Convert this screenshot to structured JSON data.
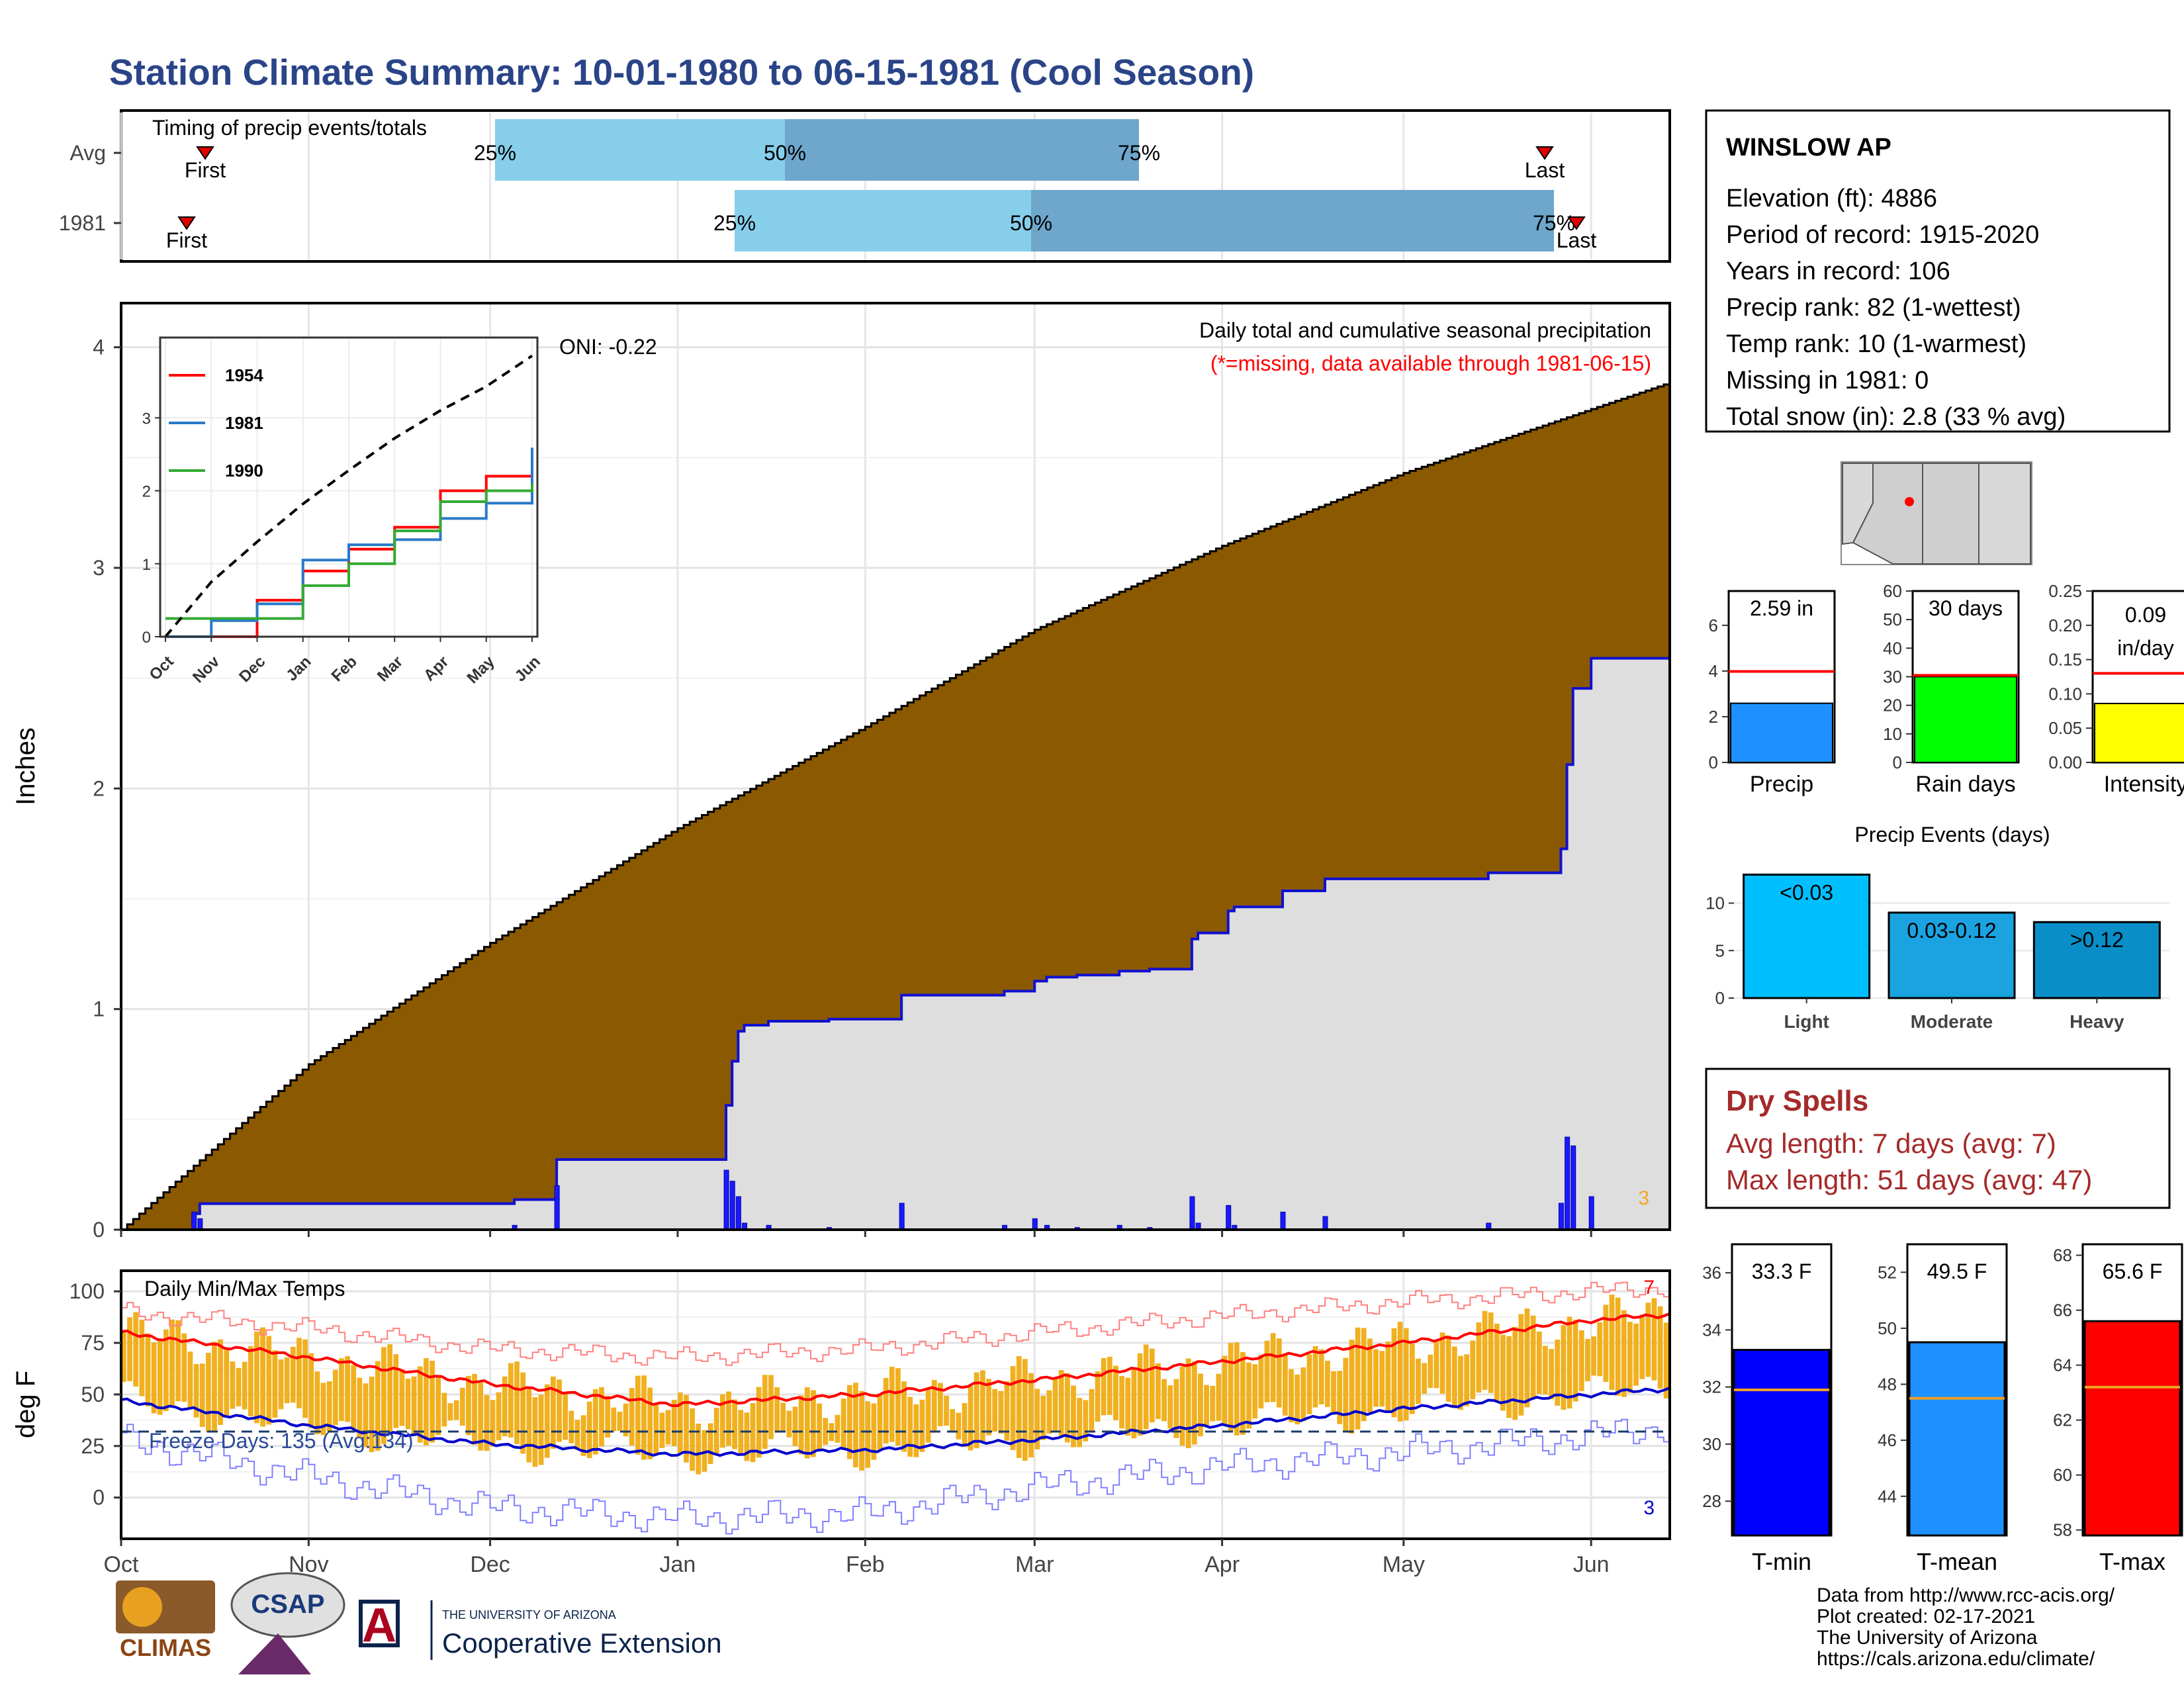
{
  "title": "Station Climate Summary: 10-01-1980 to 06-15-1981 (Cool Season)",
  "colors": {
    "title": "#2a4488",
    "avg_precip_fill": "#8b5a00",
    "season_precip_fill": "#dedede",
    "season_line": "#1010d0",
    "daily_bar": "#1a1aff",
    "timing_light": "#87ceeb",
    "timing_dark": "#6ea6cc",
    "temp_bar": "#f0b020",
    "tmax_line": "#ff0000",
    "tmin_line": "#0000cc",
    "dry_spell": "#a52a2a"
  },
  "timing": {
    "label": "Timing of precip events/totals",
    "rows": [
      {
        "label": "Avg",
        "first": "First",
        "last": "Last",
        "p25": "25%",
        "p50": "50%",
        "p75": "75%"
      },
      {
        "label": "1981",
        "first": "First",
        "last": "Last",
        "p25": "25%",
        "p50": "50%",
        "p75": "75%"
      }
    ]
  },
  "precip_panel": {
    "ylabel": "Inches",
    "title": "Daily total and cumulative seasonal precipitation",
    "subtitle": "(*=missing, data available through 1981-06-15)",
    "oni": "ONI: -0.22",
    "count_label": "3",
    "yticks": [
      "0",
      "1",
      "2",
      "3",
      "4"
    ]
  },
  "inset": {
    "legend": [
      "1954",
      "1981",
      "1990"
    ],
    "yticks": [
      "0",
      "1",
      "2",
      "3"
    ],
    "xticks": [
      "Oct",
      "Nov",
      "Dec",
      "Jan",
      "Feb",
      "Mar",
      "Apr",
      "May",
      "Jun"
    ]
  },
  "temp_panel": {
    "ylabel": "deg F",
    "title": "Daily Min/Max Temps",
    "freeze": "Freeze Days: 135 (Avg:134)",
    "high_count": "7",
    "low_count": "3",
    "yticks": [
      "0",
      "25",
      "50",
      "75",
      "100"
    ]
  },
  "xticks": [
    "Oct",
    "Nov",
    "Dec",
    "Jan",
    "Feb",
    "Mar",
    "Apr",
    "May",
    "Jun"
  ],
  "station": {
    "name": "WINSLOW AP",
    "lines": [
      "Elevation (ft): 4886",
      "Period of record: 1915-2020",
      "Years in record: 106",
      "Precip rank: 82 (1-wettest)",
      "Temp rank: 10 (1-warmest)",
      "Missing in 1981: 0",
      "Total snow (in): 2.8 (33 % avg)"
    ]
  },
  "mini_bars": [
    {
      "label": "Precip",
      "value_text": "2.59 in",
      "value": 2.59,
      "avg": 3.98,
      "ylim": [
        0,
        7.5
      ],
      "ticks": [
        "0",
        "2",
        "4",
        "6"
      ],
      "tick_vals": [
        0,
        2,
        4,
        6
      ],
      "color": "#1e90ff"
    },
    {
      "label": "Rain days",
      "value_text": "30 days",
      "value": 30,
      "avg": 30.5,
      "ylim": [
        0,
        60
      ],
      "ticks": [
        "0",
        "10",
        "20",
        "30",
        "40",
        "50",
        "60"
      ],
      "tick_vals": [
        0,
        10,
        20,
        30,
        40,
        50,
        60
      ],
      "color": "#00ff00"
    },
    {
      "label": "Intensity",
      "value_text": "0.09 in/day",
      "value_line1": "0.09",
      "value_line2": "in/day",
      "value": 0.086,
      "avg": 0.13,
      "ylim": [
        0,
        0.25
      ],
      "ticks": [
        "0.00",
        "0.05",
        "0.10",
        "0.15",
        "0.20",
        "0.25"
      ],
      "tick_vals": [
        0,
        0.05,
        0.1,
        0.15,
        0.2,
        0.25
      ],
      "color": "#ffff00"
    }
  ],
  "events": {
    "title": "Precip Events (days)",
    "yticks": [
      "0",
      "5",
      "10"
    ],
    "ytick_vals": [
      0,
      5,
      10
    ],
    "bars": [
      {
        "category": "Light",
        "label": "<0.03",
        "value": 13,
        "color": "#00bfff"
      },
      {
        "category": "Moderate",
        "label": "0.03-0.12",
        "value": 9,
        "color": "#1aa3e0"
      },
      {
        "category": "Heavy",
        "label": ">0.12",
        "value": 8,
        "color": "#0a8ec8"
      }
    ]
  },
  "dry_spells": {
    "title": "Dry Spells",
    "avg": "Avg length: 7 days (avg: 7)",
    "max": "Max length: 51 days (avg: 47)"
  },
  "temp_bars": [
    {
      "label": "T-min",
      "value_text": "33.3 F",
      "value": 33.3,
      "avg": 31.9,
      "ylim": [
        26.8,
        37
      ],
      "ticks": [
        "28",
        "30",
        "32",
        "34",
        "36"
      ],
      "tick_vals": [
        28,
        30,
        32,
        34,
        36
      ],
      "color": "#0000ff"
    },
    {
      "label": "T-mean",
      "value_text": "49.5 F",
      "value": 49.5,
      "avg": 47.5,
      "ylim": [
        42.6,
        53
      ],
      "ticks": [
        "44",
        "46",
        "48",
        "50",
        "52"
      ],
      "tick_vals": [
        44,
        46,
        48,
        50,
        52
      ],
      "color": "#1e90ff"
    },
    {
      "label": "T-max",
      "value_text": "65.6 F",
      "value": 65.6,
      "avg": 63.2,
      "ylim": [
        57.8,
        68.4
      ],
      "ticks": [
        "58",
        "60",
        "62",
        "64",
        "66",
        "68"
      ],
      "tick_vals": [
        58,
        60,
        62,
        64,
        66,
        68
      ],
      "color": "#ff0000"
    }
  ],
  "credits": [
    "Data from http://www.rcc-acis.org/",
    "Plot created: 02-17-2021",
    "The University of Arizona",
    "https://cals.arizona.edu/climate/"
  ],
  "logos": {
    "climas": "CLIMAS",
    "csap": "CSAP",
    "ua_small": "THE UNIVERSITY OF ARIZONA",
    "ua_big": "Cooperative Extension"
  },
  "chart_data": [
    {
      "type": "area",
      "title": "Daily total and cumulative seasonal precipitation",
      "ylabel": "Inches",
      "ylim": [
        0,
        4.2
      ],
      "x": [
        "1980-10-01",
        "1980-11-01",
        "1980-12-01",
        "1981-01-01",
        "1981-02-01",
        "1981-03-01",
        "1981-04-01",
        "1981-05-01",
        "1981-06-01",
        "1981-06-15"
      ],
      "series": [
        {
          "name": "Avg",
          "values": [
            0.0,
            0.75,
            1.3,
            1.82,
            2.28,
            2.72,
            3.1,
            3.43,
            3.72,
            3.85
          ]
        },
        {
          "name": "1981",
          "values": [
            0.0,
            0.22,
            0.45,
            1.05,
            1.26,
            1.33,
            1.62,
            1.83,
            2.58,
            2.59
          ]
        }
      ],
      "daily_events": [
        {
          "date": "1980-10-13",
          "value": 0.08
        },
        {
          "date": "1980-10-14",
          "value": 0.05
        },
        {
          "date": "1980-12-12",
          "value": 0.2
        },
        {
          "date": "1980-12-05",
          "value": 0.02
        },
        {
          "date": "1981-01-09",
          "value": 0.27
        },
        {
          "date": "1981-01-10",
          "value": 0.22
        },
        {
          "date": "1981-01-11",
          "value": 0.15
        },
        {
          "date": "1981-01-12",
          "value": 0.03
        },
        {
          "date": "1981-01-16",
          "value": 0.02
        },
        {
          "date": "1981-01-26",
          "value": 0.01
        },
        {
          "date": "1981-02-07",
          "value": 0.12
        },
        {
          "date": "1981-02-24",
          "value": 0.02
        },
        {
          "date": "1981-03-01",
          "value": 0.05
        },
        {
          "date": "1981-03-03",
          "value": 0.02
        },
        {
          "date": "1981-03-08",
          "value": 0.01
        },
        {
          "date": "1981-03-15",
          "value": 0.02
        },
        {
          "date": "1981-03-20",
          "value": 0.01
        },
        {
          "date": "1981-03-27",
          "value": 0.15
        },
        {
          "date": "1981-03-28",
          "value": 0.03
        },
        {
          "date": "1981-04-02",
          "value": 0.11
        },
        {
          "date": "1981-04-03",
          "value": 0.02
        },
        {
          "date": "1981-04-11",
          "value": 0.08
        },
        {
          "date": "1981-04-18",
          "value": 0.06
        },
        {
          "date": "1981-05-15",
          "value": 0.03
        },
        {
          "date": "1981-05-27",
          "value": 0.12
        },
        {
          "date": "1981-05-28",
          "value": 0.42
        },
        {
          "date": "1981-05-29",
          "value": 0.38
        },
        {
          "date": "1981-06-01",
          "value": 0.15
        }
      ]
    },
    {
      "type": "line",
      "title": "Inset: cumulative precipitation comparison",
      "x": [
        "Oct",
        "Nov",
        "Dec",
        "Jan",
        "Feb",
        "Mar",
        "Apr",
        "May",
        "Jun"
      ],
      "ylim": [
        0,
        4.1
      ],
      "series": [
        {
          "name": "1954",
          "values": [
            0.0,
            0.0,
            0.5,
            0.9,
            1.2,
            1.5,
            2.0,
            2.2,
            2.45
          ]
        },
        {
          "name": "1981",
          "values": [
            0.0,
            0.22,
            0.45,
            1.05,
            1.26,
            1.33,
            1.62,
            1.83,
            2.59
          ]
        },
        {
          "name": "1990",
          "values": [
            0.25,
            0.25,
            0.25,
            0.7,
            1.0,
            1.45,
            1.85,
            2.0,
            2.1
          ]
        },
        {
          "values": [
            0.0,
            0.75,
            1.3,
            1.82,
            2.28,
            2.72,
            3.1,
            3.43,
            3.85
          ]
        }
      ]
    },
    {
      "type": "line",
      "title": "Daily Min/Max Temps",
      "ylabel": "deg F",
      "ylim": [
        -20,
        110
      ],
      "x": [
        "1980-10-01",
        "1980-11-01",
        "1980-12-01",
        "1981-01-01",
        "1981-02-01",
        "1981-03-01",
        "1981-04-01",
        "1981-05-01",
        "1981-06-01",
        "1981-06-15"
      ],
      "series": [
        {
          "name": "Normal max",
          "values": [
            80,
            68,
            55,
            45,
            50,
            57,
            66,
            75,
            86,
            89
          ]
        },
        {
          "name": "Normal min",
          "values": [
            47,
            35,
            26,
            21,
            23,
            28,
            35,
            43,
            50,
            53
          ]
        },
        {
          "name": "Record max",
          "values": [
            90,
            82,
            72,
            68,
            72,
            80,
            88,
            95,
            100,
            102
          ]
        },
        {
          "name": "Record min",
          "values": [
            28,
            10,
            -5,
            -10,
            -8,
            5,
            15,
            22,
            30,
            35
          ]
        }
      ]
    },
    {
      "type": "bar",
      "title": "Precip Events (days)",
      "categories": [
        "Light",
        "Moderate",
        "Heavy"
      ],
      "values": [
        13,
        9,
        8
      ]
    },
    {
      "type": "bar",
      "categories": [
        "Precip",
        "Rain days",
        "Intensity",
        "T-min",
        "T-mean",
        "T-max"
      ],
      "values": [
        2.59,
        30,
        0.09,
        33.3,
        49.5,
        65.6
      ]
    }
  ]
}
